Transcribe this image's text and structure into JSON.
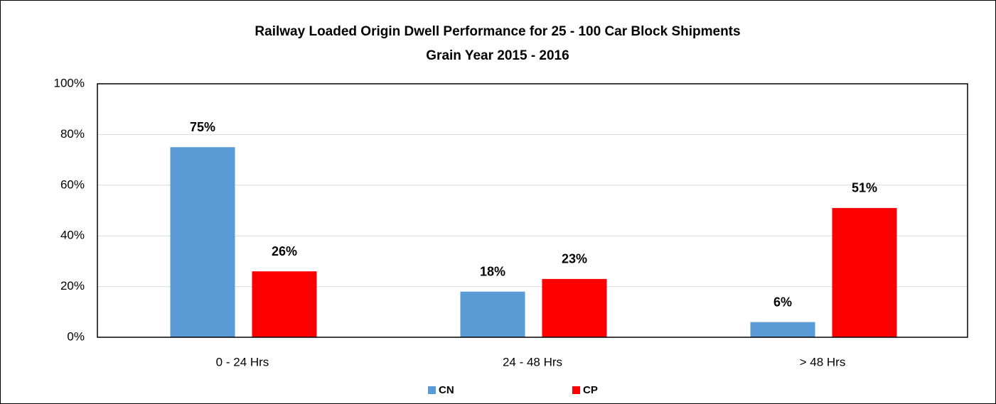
{
  "chart_data": {
    "type": "bar",
    "title": "Railway Loaded Origin Dwell Performance for 25 - 100 Car Block Shipments",
    "subtitle": "Grain Year 2015 - 2016",
    "categories": [
      "0 - 24 Hrs",
      "24 - 48 Hrs",
      "> 48 Hrs"
    ],
    "series": [
      {
        "name": "CN",
        "color": "#5b9bd5",
        "values": [
          75,
          18,
          6
        ],
        "value_labels": [
          "75%",
          "18%",
          "6%"
        ]
      },
      {
        "name": "CP",
        "color": "#ff0000",
        "values": [
          26,
          23,
          51
        ],
        "value_labels": [
          "26%",
          "23%",
          "51%"
        ]
      }
    ],
    "ylim": [
      0,
      100
    ],
    "yticks": [
      {
        "value": 0,
        "label": "0%"
      },
      {
        "value": 20,
        "label": "20%"
      },
      {
        "value": 40,
        "label": "40%"
      },
      {
        "value": 60,
        "label": "60%"
      },
      {
        "value": 80,
        "label": "80%"
      },
      {
        "value": 100,
        "label": "100%"
      }
    ],
    "grid": true,
    "legend": "bottom"
  }
}
